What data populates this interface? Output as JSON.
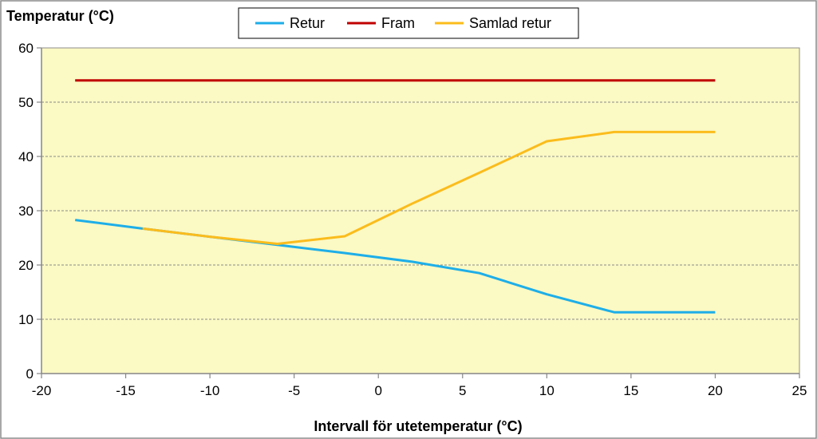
{
  "chart_data": {
    "type": "line",
    "title": "",
    "ylabel": "Temperatur (°C)",
    "xlabel": "Intervall för utetemperatur (°C)",
    "xlim": [
      -20,
      25
    ],
    "ylim": [
      0,
      60
    ],
    "xticks": [
      -20,
      -15,
      -10,
      -5,
      0,
      5,
      10,
      15,
      20,
      25
    ],
    "yticks": [
      0,
      10,
      20,
      30,
      40,
      50,
      60
    ],
    "grid": "horizontal-dashed",
    "legend_position": "top-center",
    "plot_background": "#fbf9c4",
    "series": [
      {
        "name": "Retur",
        "color": "#1eaee8",
        "x": [
          -18,
          -14,
          -10,
          -6,
          -2,
          2,
          6,
          10,
          14,
          20
        ],
        "y": [
          28.3,
          26.7,
          25.2,
          23.7,
          22.2,
          20.6,
          18.5,
          14.6,
          11.3,
          11.3
        ]
      },
      {
        "name": "Fram",
        "color": "#c00000",
        "x": [
          -18,
          20
        ],
        "y": [
          54,
          54
        ]
      },
      {
        "name": "Samlad retur",
        "color": "#fbbc1c",
        "x": [
          -14,
          -10,
          -6,
          -2,
          2,
          6,
          10,
          14,
          20
        ],
        "y": [
          26.7,
          25.2,
          23.9,
          25.3,
          31.3,
          37.0,
          42.8,
          44.5,
          44.5
        ]
      }
    ]
  }
}
